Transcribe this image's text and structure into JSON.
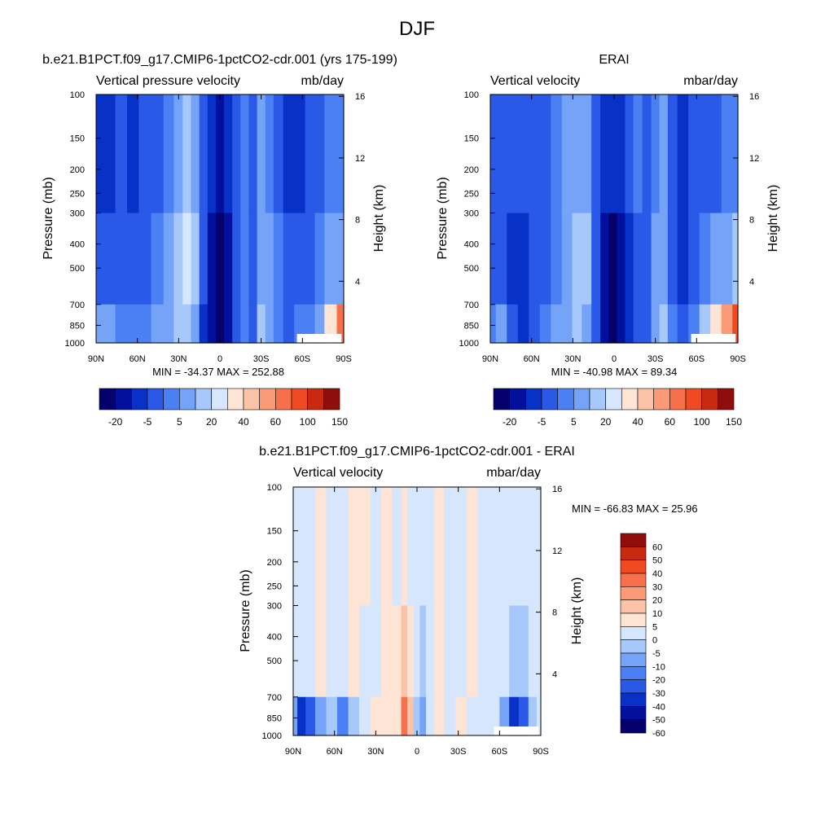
{
  "figure": {
    "title": "DJF"
  },
  "colors": {
    "diverging": [
      "#04016c",
      "#03109e",
      "#0831c8",
      "#2a59e8",
      "#4a80f4",
      "#75a3f7",
      "#a7c8fb",
      "#d6e6fd",
      "#fde4d4",
      "#fcc3a8",
      "#fa9a77",
      "#f7704c",
      "#ef4a22",
      "#c82a11",
      "#8f0d0b"
    ],
    "diff": [
      "#04016c",
      "#03109e",
      "#0831c8",
      "#2a59e8",
      "#4a80f4",
      "#75a3f7",
      "#a7c8fb",
      "#d6e6fd",
      "#fde4d4",
      "#fcc3a8",
      "#fa9a77",
      "#f7704c",
      "#ef4a22",
      "#c82a11",
      "#8f0d0b"
    ],
    "missing": "#ffffff"
  },
  "chart_data": [
    {
      "type": "heatmap",
      "title": "b.e21.B1PCT.f09_g17.CMIP6-1pctCO2-cdr.001 (yrs 175-199)",
      "left_label": "Vertical pressure velocity",
      "right_label": "mb/day",
      "ylabel": "Pressure (mb)",
      "ylabel_right": "Height (km)",
      "x_ticks": [
        "90N",
        "60N",
        "30N",
        "0",
        "30S",
        "60S",
        "90S"
      ],
      "y_ticks": [
        "100",
        "150",
        "200",
        "250",
        "300",
        "400",
        "500",
        "700",
        "850",
        "1000"
      ],
      "y_right_ticks": [
        "16",
        "12",
        "8",
        "4"
      ],
      "stats": "MIN = -34.37  MAX = 252.88",
      "colorbar_labels": [
        "-20",
        "-5",
        "5",
        "20",
        "40",
        "60",
        "100",
        "150"
      ],
      "field": "model",
      "bands": [
        {
          "lat": 90,
          "top": 2,
          "mid": 3,
          "bot": 5
        },
        {
          "lat": 80,
          "top": 2,
          "mid": 3,
          "bot": 5
        },
        {
          "lat": 72,
          "top": 3,
          "mid": 3,
          "bot": 4
        },
        {
          "lat": 63,
          "top": 2,
          "mid": 3,
          "bot": 4
        },
        {
          "lat": 55,
          "top": 3,
          "mid": 3,
          "bot": 4
        },
        {
          "lat": 45,
          "top": 3,
          "mid": 4,
          "bot": 5
        },
        {
          "lat": 37,
          "top": 4,
          "mid": 5,
          "bot": 5
        },
        {
          "lat": 30,
          "top": 5,
          "mid": 6,
          "bot": 6
        },
        {
          "lat": 24,
          "top": 6,
          "mid": 7,
          "bot": 6
        },
        {
          "lat": 18,
          "top": 5,
          "mid": 6,
          "bot": 5
        },
        {
          "lat": 12,
          "top": 3,
          "mid": 3,
          "bot": 2
        },
        {
          "lat": 6,
          "top": 2,
          "mid": 1,
          "bot": 1
        },
        {
          "lat": 0,
          "top": 1,
          "mid": 0,
          "bot": 0
        },
        {
          "lat": -6,
          "top": 2,
          "mid": 1,
          "bot": 1
        },
        {
          "lat": -12,
          "top": 3,
          "mid": 3,
          "bot": 3
        },
        {
          "lat": -18,
          "top": 4,
          "mid": 4,
          "bot": 4
        },
        {
          "lat": -24,
          "top": 3,
          "mid": 3,
          "bot": 3
        },
        {
          "lat": -30,
          "top": 5,
          "mid": 5,
          "bot": 6
        },
        {
          "lat": -36,
          "top": 4,
          "mid": 5,
          "bot": 5
        },
        {
          "lat": -42,
          "top": 3,
          "mid": 4,
          "bot": 4
        },
        {
          "lat": -50,
          "top": 2,
          "mid": 3,
          "bot": 3
        },
        {
          "lat": -58,
          "top": 2,
          "mid": 3,
          "bot": 4
        },
        {
          "lat": -66,
          "top": 3,
          "mid": 3,
          "bot": 4
        },
        {
          "lat": -72,
          "top": 3,
          "mid": 4,
          "bot": 5
        },
        {
          "lat": -80,
          "top": 4,
          "mid": 5,
          "bot": 8
        },
        {
          "lat": -90,
          "top": 4,
          "mid": 5,
          "bot": 11
        }
      ]
    },
    {
      "type": "heatmap",
      "title": "ERAI",
      "left_label": "Vertical velocity",
      "right_label": "mbar/day",
      "ylabel": "Pressure (mb)",
      "ylabel_right": "Height (km)",
      "x_ticks": [
        "90N",
        "60N",
        "30N",
        "0",
        "30S",
        "60S",
        "90S"
      ],
      "y_ticks": [
        "100",
        "150",
        "200",
        "250",
        "300",
        "400",
        "500",
        "700",
        "850",
        "1000"
      ],
      "y_right_ticks": [
        "16",
        "12",
        "8",
        "4"
      ],
      "stats": "MIN = -40.98  MAX =  89.34",
      "colorbar_labels": [
        "-20",
        "-5",
        "5",
        "20",
        "40",
        "60",
        "100",
        "150"
      ],
      "field": "obs",
      "bands": [
        {
          "lat": 90,
          "top": 3,
          "mid": 3,
          "bot": 4
        },
        {
          "lat": 82,
          "top": 3,
          "mid": 3,
          "bot": 5
        },
        {
          "lat": 74,
          "top": 3,
          "mid": 2,
          "bot": 3
        },
        {
          "lat": 66,
          "top": 3,
          "mid": 2,
          "bot": 2
        },
        {
          "lat": 58,
          "top": 3,
          "mid": 3,
          "bot": 3
        },
        {
          "lat": 50,
          "top": 3,
          "mid": 3,
          "bot": 4
        },
        {
          "lat": 42,
          "top": 4,
          "mid": 4,
          "bot": 5
        },
        {
          "lat": 34,
          "top": 5,
          "mid": 5,
          "bot": 5
        },
        {
          "lat": 27,
          "top": 5,
          "mid": 6,
          "bot": 6
        },
        {
          "lat": 20,
          "top": 5,
          "mid": 6,
          "bot": 5
        },
        {
          "lat": 13,
          "top": 3,
          "mid": 3,
          "bot": 3
        },
        {
          "lat": 7,
          "top": 2,
          "mid": 1,
          "bot": 1
        },
        {
          "lat": 1,
          "top": 2,
          "mid": 0,
          "bot": 0
        },
        {
          "lat": -5,
          "top": 2,
          "mid": 1,
          "bot": 1
        },
        {
          "lat": -11,
          "top": 3,
          "mid": 2,
          "bot": 2
        },
        {
          "lat": -17,
          "top": 4,
          "mid": 3,
          "bot": 3
        },
        {
          "lat": -24,
          "top": 3,
          "mid": 3,
          "bot": 3
        },
        {
          "lat": -30,
          "top": 4,
          "mid": 5,
          "bot": 5
        },
        {
          "lat": -36,
          "top": 5,
          "mid": 5,
          "bot": 6
        },
        {
          "lat": -42,
          "top": 3,
          "mid": 3,
          "bot": 4
        },
        {
          "lat": -50,
          "top": 2,
          "mid": 2,
          "bot": 3
        },
        {
          "lat": -58,
          "top": 3,
          "mid": 3,
          "bot": 4
        },
        {
          "lat": -66,
          "top": 3,
          "mid": 4,
          "bot": 6
        },
        {
          "lat": -74,
          "top": 3,
          "mid": 5,
          "bot": 8
        },
        {
          "lat": -82,
          "top": 4,
          "mid": 5,
          "bot": 10
        },
        {
          "lat": -90,
          "top": 4,
          "mid": 6,
          "bot": 12
        }
      ]
    },
    {
      "type": "heatmap",
      "title": "b.e21.B1PCT.f09_g17.CMIP6-1pctCO2-cdr.001 - ERAI",
      "left_label": "Vertical velocity",
      "right_label": "mbar/day",
      "ylabel": "Pressure (mb)",
      "ylabel_right": "Height (km)",
      "x_ticks": [
        "90N",
        "60N",
        "30N",
        "0",
        "30S",
        "60S",
        "90S"
      ],
      "y_ticks": [
        "100",
        "150",
        "200",
        "250",
        "300",
        "400",
        "500",
        "700",
        "850",
        "1000"
      ],
      "y_right_ticks": [
        "16",
        "12",
        "8",
        "4"
      ],
      "stats": "MIN = -66.83  MAX =  25.96",
      "colorbar_labels": [
        "60",
        "50",
        "40",
        "30",
        "20",
        "10",
        "5",
        "0",
        "-5",
        "-10",
        "-20",
        "-30",
        "-40",
        "-50",
        "-60"
      ],
      "field": "diff",
      "bands": [
        {
          "lat": 90,
          "top": 7,
          "mid": 7,
          "bot": 5
        },
        {
          "lat": 84,
          "top": 7,
          "mid": 7,
          "bot": 2
        },
        {
          "lat": 78,
          "top": 7,
          "mid": 7,
          "bot": 3
        },
        {
          "lat": 70,
          "top": 8,
          "mid": 8,
          "bot": 5
        },
        {
          "lat": 62,
          "top": 7,
          "mid": 7,
          "bot": 6
        },
        {
          "lat": 54,
          "top": 7,
          "mid": 7,
          "bot": 4
        },
        {
          "lat": 46,
          "top": 8,
          "mid": 8,
          "bot": 6
        },
        {
          "lat": 38,
          "top": 8,
          "mid": 7,
          "bot": 7
        },
        {
          "lat": 30,
          "top": 7,
          "mid": 7,
          "bot": 8
        },
        {
          "lat": 22,
          "top": 8,
          "mid": 8,
          "bot": 8
        },
        {
          "lat": 14,
          "top": 7,
          "mid": 8,
          "bot": 8
        },
        {
          "lat": 9,
          "top": 8,
          "mid": 9,
          "bot": 11
        },
        {
          "lat": 5,
          "top": 7,
          "mid": 8,
          "bot": 9
        },
        {
          "lat": 0,
          "top": 7,
          "mid": 7,
          "bot": 6
        },
        {
          "lat": -4,
          "top": 7,
          "mid": 6,
          "bot": 5
        },
        {
          "lat": -9,
          "top": 7,
          "mid": 7,
          "bot": 7
        },
        {
          "lat": -16,
          "top": 8,
          "mid": 8,
          "bot": 8
        },
        {
          "lat": -24,
          "top": 7,
          "mid": 7,
          "bot": 7
        },
        {
          "lat": -32,
          "top": 7,
          "mid": 7,
          "bot": 8
        },
        {
          "lat": -40,
          "top": 8,
          "mid": 8,
          "bot": 7
        },
        {
          "lat": -48,
          "top": 7,
          "mid": 7,
          "bot": 7
        },
        {
          "lat": -56,
          "top": 7,
          "mid": 7,
          "bot": 7
        },
        {
          "lat": -64,
          "top": 7,
          "mid": 7,
          "bot": 5
        },
        {
          "lat": -70,
          "top": 7,
          "mid": 6,
          "bot": 2
        },
        {
          "lat": -78,
          "top": 7,
          "mid": 6,
          "bot": 3
        },
        {
          "lat": -84,
          "top": 7,
          "mid": 7,
          "bot": 6
        },
        {
          "lat": -90,
          "top": 7,
          "mid": 7,
          "bot": 7
        }
      ]
    }
  ]
}
